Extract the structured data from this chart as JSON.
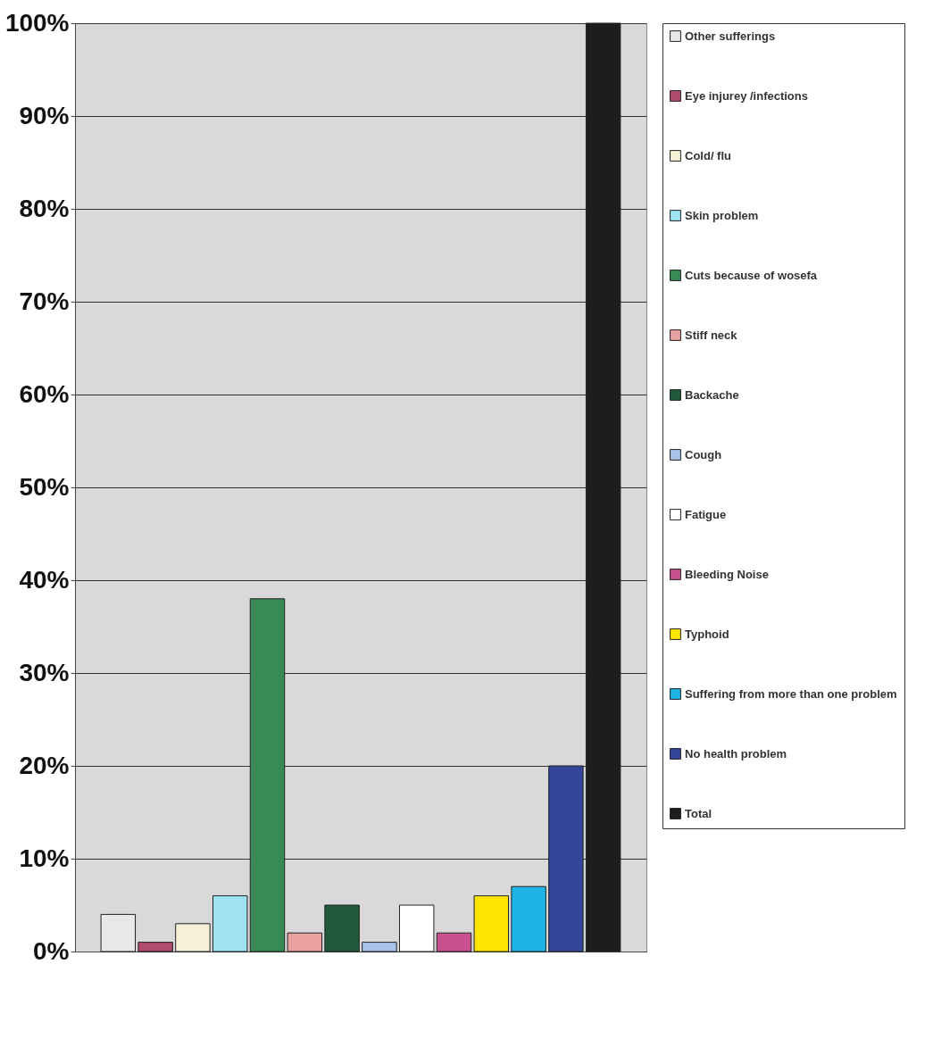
{
  "chart_data": {
    "type": "bar",
    "categories": [
      null
    ],
    "series": [
      {
        "name": "Other sufferings",
        "color": "#e8e8e8",
        "values": [
          4
        ]
      },
      {
        "name": "Eye injurey /infections",
        "color": "#b04a6e",
        "values": [
          1
        ]
      },
      {
        "name": "Cold/ flu",
        "color": "#f4f1d6",
        "values": [
          3
        ]
      },
      {
        "name": "Skin problem",
        "color": "#9fe3f2",
        "values": [
          6
        ]
      },
      {
        "name": "Cuts because of wosefa",
        "color": "#3a8a55",
        "values": [
          38
        ]
      },
      {
        "name": "Stiff neck",
        "color": "#e9a0a0",
        "values": [
          2
        ]
      },
      {
        "name": "Backache",
        "color": "#1f5a3a",
        "values": [
          5
        ]
      },
      {
        "name": "Cough",
        "color": "#a9c4e8",
        "values": [
          1
        ]
      },
      {
        "name": "Fatigue",
        "color": "#ffffff",
        "values": [
          5
        ]
      },
      {
        "name": "Bleeding Noise",
        "color": "#c8508f",
        "values": [
          2
        ]
      },
      {
        "name": "Typhoid",
        "color": "#ffe600",
        "values": [
          6
        ]
      },
      {
        "name": "Suffering from more than one problem",
        "color": "#1eb4e6",
        "values": [
          7
        ]
      },
      {
        "name": "No health problem",
        "color": "#34469a",
        "values": [
          20
        ]
      },
      {
        "name": "Total",
        "color": "#1e1c1c",
        "values": [
          100
        ]
      }
    ],
    "ylim": [
      0,
      100
    ],
    "yticks": [
      {
        "value": 0,
        "label": "0%"
      },
      {
        "value": 10,
        "label": "10%"
      },
      {
        "value": 20,
        "label": "20%"
      },
      {
        "value": 30,
        "label": "30%"
      },
      {
        "value": 40,
        "label": "40%"
      },
      {
        "value": 50,
        "label": "50%"
      },
      {
        "value": 60,
        "label": "60%"
      },
      {
        "value": 70,
        "label": "70%"
      },
      {
        "value": 80,
        "label": "80%"
      },
      {
        "value": 90,
        "label": "90%"
      },
      {
        "value": 100,
        "label": "100%"
      }
    ],
    "grid": "y",
    "legend": "right"
  }
}
